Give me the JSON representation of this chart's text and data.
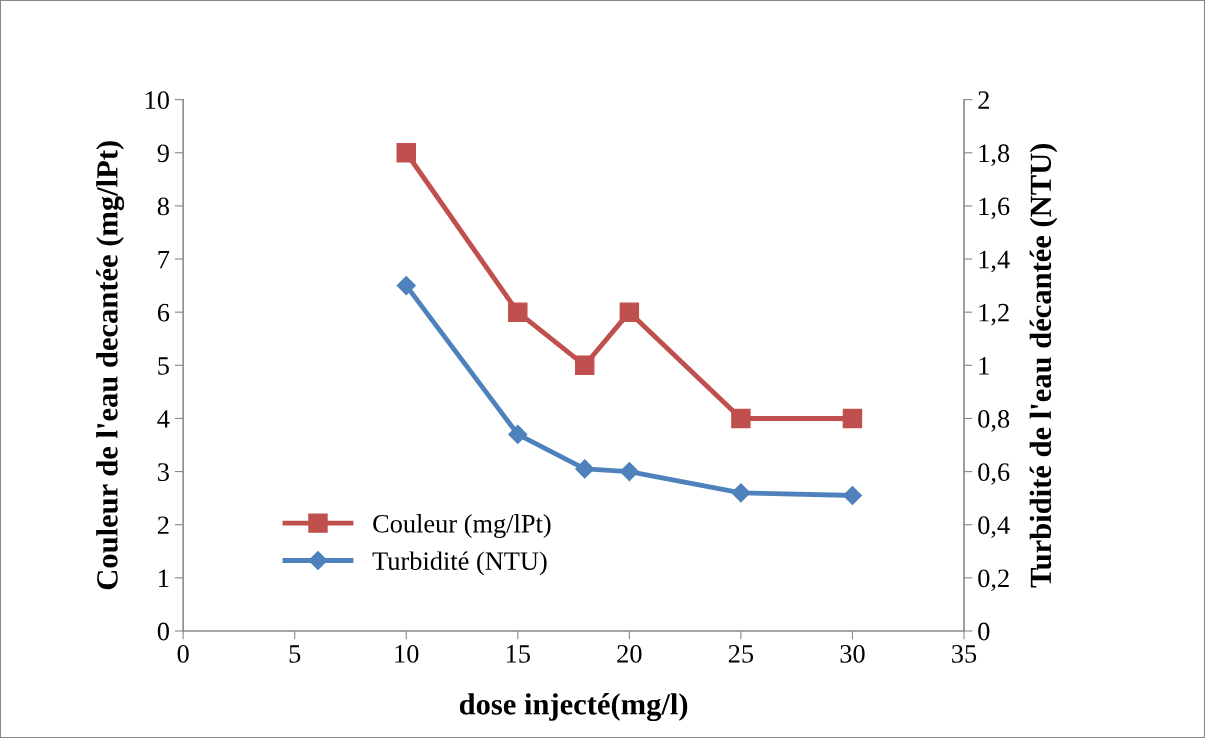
{
  "chart_data": {
    "type": "line",
    "xlabel": "dose injecté(mg/l)",
    "ylabel": "Couleur de l'eau decantée (mg/lPt)",
    "y2label": "Turbidité de l'eau décantée (NTU)",
    "x": [
      10,
      15,
      18,
      20,
      25,
      30
    ],
    "series": [
      {
        "name": "Couleur (mg/lPt)",
        "color": "#c0504d",
        "marker": "square",
        "values": [
          9,
          6,
          5,
          6,
          4,
          4
        ]
      },
      {
        "name": "Turbidité (NTU)",
        "color": "#4f81bd",
        "marker": "diamond",
        "axis": "y2",
        "values": [
          1.3,
          0.74,
          0.61,
          0.6,
          0.52,
          0.51
        ]
      }
    ],
    "xlim": [
      0,
      35
    ],
    "xticks": [
      0,
      5,
      10,
      15,
      20,
      25,
      30,
      35
    ],
    "ylim": [
      0,
      10
    ],
    "yticks": [
      0,
      1,
      2,
      3,
      4,
      5,
      6,
      7,
      8,
      9,
      10
    ],
    "y2lim": [
      0,
      2
    ],
    "y2ticks": [
      0,
      {
        "value": 0.2,
        "label": "0,2"
      },
      {
        "value": 0.4,
        "label": "0,4"
      },
      {
        "value": 0.6,
        "label": "0,6"
      },
      {
        "value": 0.8,
        "label": "0,8"
      },
      1,
      {
        "value": 1.2,
        "label": "1,2"
      },
      {
        "value": 1.4,
        "label": "1,4"
      },
      {
        "value": 1.6,
        "label": "1,6"
      },
      {
        "value": 1.8,
        "label": "1,8"
      },
      2
    ],
    "grid": false,
    "legend": "bottom left",
    "line_style": "solid"
  }
}
